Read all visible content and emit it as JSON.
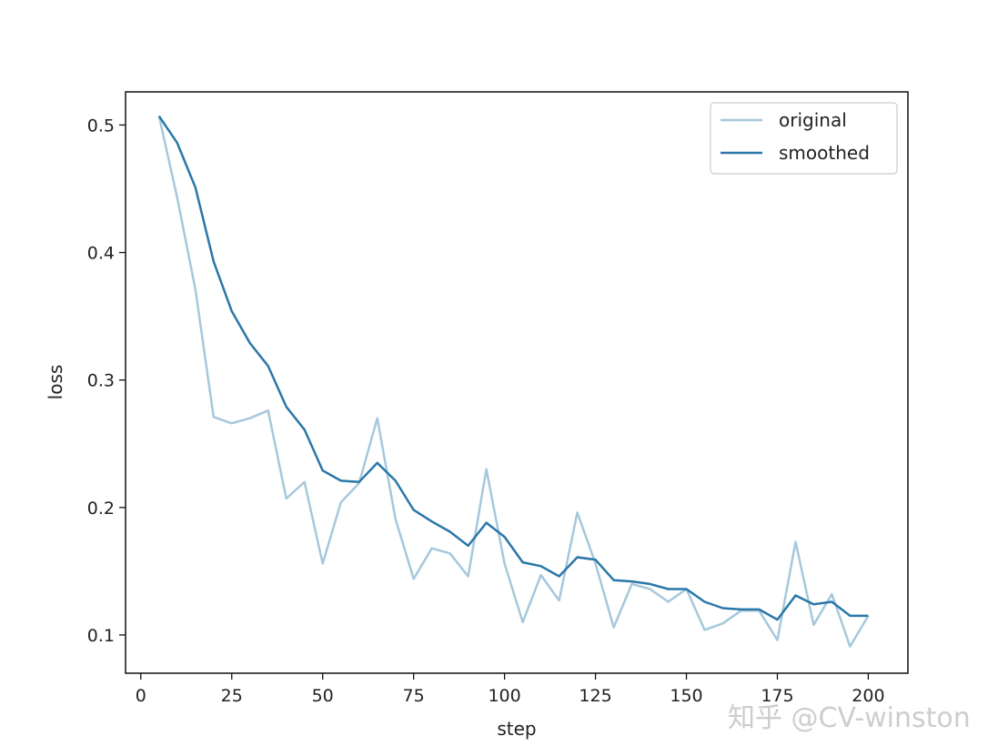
{
  "chart_data": {
    "type": "line",
    "title": "",
    "xlabel": "step",
    "ylabel": "loss",
    "xlim": [
      -4.2,
      210.9
    ],
    "ylim": [
      0.07,
      0.526
    ],
    "xticks": [
      0,
      25,
      50,
      75,
      100,
      125,
      150,
      175,
      200
    ],
    "xtick_labels": [
      "0",
      "25",
      "50",
      "75",
      "100",
      "125",
      "150",
      "175",
      "200"
    ],
    "yticks": [
      0.1,
      0.2,
      0.3,
      0.4,
      0.5
    ],
    "ytick_labels": [
      "0.1",
      "0.2",
      "0.3",
      "0.4",
      "0.5"
    ],
    "grid": false,
    "legend_position": "top-right",
    "x": [
      5,
      10,
      15,
      20,
      25,
      30,
      35,
      40,
      45,
      50,
      55,
      60,
      65,
      70,
      75,
      80,
      85,
      90,
      95,
      100,
      105,
      110,
      115,
      120,
      125,
      130,
      135,
      140,
      145,
      150,
      155,
      160,
      165,
      170,
      175,
      180,
      185,
      190,
      195,
      200
    ],
    "series": [
      {
        "name": "original",
        "color": "#a6c8dc",
        "values": [
          0.507,
          0.443,
          0.371,
          0.271,
          0.266,
          0.27,
          0.276,
          0.207,
          0.22,
          0.156,
          0.204,
          0.219,
          0.27,
          0.191,
          0.144,
          0.168,
          0.164,
          0.146,
          0.23,
          0.156,
          0.11,
          0.147,
          0.127,
          0.196,
          0.156,
          0.106,
          0.14,
          0.136,
          0.126,
          0.136,
          0.104,
          0.109,
          0.119,
          0.119,
          0.096,
          0.173,
          0.108,
          0.132,
          0.091,
          0.115
        ]
      },
      {
        "name": "smoothed",
        "color": "#2a77a8",
        "values": [
          0.507,
          0.486,
          0.451,
          0.393,
          0.354,
          0.329,
          0.311,
          0.279,
          0.261,
          0.229,
          0.221,
          0.22,
          0.235,
          0.221,
          0.198,
          0.189,
          0.181,
          0.17,
          0.188,
          0.177,
          0.157,
          0.154,
          0.146,
          0.161,
          0.159,
          0.143,
          0.142,
          0.14,
          0.136,
          0.136,
          0.126,
          0.121,
          0.12,
          0.12,
          0.112,
          0.131,
          0.124,
          0.126,
          0.115,
          0.115
        ]
      }
    ]
  },
  "watermark": "知乎 @CV-winston"
}
